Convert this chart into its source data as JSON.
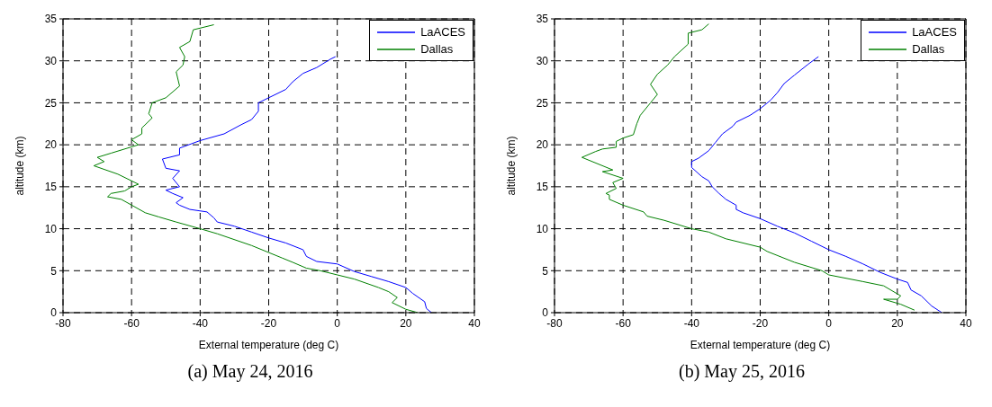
{
  "chart_data": [
    {
      "type": "line",
      "title": "(a) May 24, 2016",
      "xlabel": "External temperature (deg C)",
      "ylabel": "altitude (km)",
      "xlim": [
        -80,
        40
      ],
      "xticks": [
        -80,
        -60,
        -40,
        -20,
        0,
        20,
        40
      ],
      "ylim": [
        0,
        35
      ],
      "yticks": [
        0,
        5,
        10,
        15,
        20,
        25,
        30,
        35
      ],
      "grid": true,
      "legend": "top right",
      "series": [
        {
          "name": "LaACES",
          "color": "#0000ff",
          "x": [
            27.5,
            26,
            25.5,
            22,
            20,
            15,
            10,
            5,
            0,
            -6,
            -9,
            -10,
            -15,
            -20,
            -25,
            -30,
            -35,
            -36,
            -38,
            -43,
            -46,
            -47,
            -45,
            -48,
            -50,
            -46,
            -48,
            -46,
            -50,
            -51,
            -46,
            -46,
            -40,
            -33,
            -28,
            -25,
            -23,
            -23,
            -20,
            -15,
            -13,
            -10,
            -6,
            -2,
            -0.5
          ],
          "values": [
            0,
            0.5,
            1.3,
            2.3,
            3,
            3.7,
            4.3,
            4.9,
            5.8,
            6.1,
            6.7,
            7.5,
            8.3,
            8.9,
            9.6,
            10.3,
            10.8,
            11.3,
            12,
            12.3,
            12.8,
            13.1,
            13.7,
            14.2,
            14.6,
            15,
            16,
            16.9,
            17.2,
            18.3,
            18.8,
            19.6,
            20.5,
            21.3,
            22.4,
            23,
            24,
            25,
            25.6,
            26.6,
            27.5,
            28.5,
            29.2,
            30.2,
            30.5
          ]
        },
        {
          "name": "Dallas",
          "color": "#008000",
          "x": [
            23.5,
            20,
            16,
            17.5,
            15,
            12,
            5,
            0,
            -5,
            -9,
            -13,
            -16,
            -25,
            -35,
            -40,
            -47,
            -52,
            -56,
            -63,
            -67,
            -66,
            -62,
            -60,
            -58,
            -64,
            -71,
            -68,
            -70,
            -66,
            -58,
            -60,
            -57,
            -57,
            -54,
            -55,
            -54,
            -50,
            -46,
            -47,
            -45,
            -44.5,
            -46,
            -43,
            -42,
            -36
          ],
          "values": [
            0,
            0.4,
            1.2,
            1.8,
            2.5,
            3,
            4,
            4.5,
            5,
            5.3,
            6,
            6.5,
            8,
            9.4,
            10,
            10.8,
            11.4,
            11.9,
            13.5,
            13.8,
            14.2,
            14.5,
            15,
            15.3,
            16.5,
            17.5,
            18,
            18.5,
            19,
            20,
            20.6,
            21.3,
            22,
            23.2,
            23.7,
            25,
            25.6,
            27,
            28.7,
            29.5,
            30.5,
            31.6,
            32.3,
            33.7,
            34.3
          ]
        }
      ]
    },
    {
      "type": "line",
      "title": "(b) May 25, 2016",
      "xlabel": "External temperature (deg C)",
      "ylabel": "altitude (km)",
      "xlim": [
        -80,
        40
      ],
      "xticks": [
        -80,
        -60,
        -40,
        -20,
        0,
        20,
        40
      ],
      "ylim": [
        0,
        35
      ],
      "yticks": [
        0,
        5,
        10,
        15,
        20,
        25,
        30,
        35
      ],
      "grid": true,
      "legend": "top right",
      "series": [
        {
          "name": "LaACES",
          "color": "#0000ff",
          "x": [
            33,
            30,
            27,
            24,
            23,
            20,
            15,
            10,
            5,
            0,
            -5,
            -10,
            -15,
            -20,
            -25,
            -27,
            -27,
            -30,
            -32,
            -34,
            -35,
            -37,
            -40,
            -40,
            -38,
            -35,
            -33,
            -31,
            -28,
            -27,
            -23,
            -20,
            -17,
            -15,
            -13,
            -10,
            -6,
            -3
          ],
          "values": [
            0,
            0.8,
            2,
            2.7,
            3.6,
            4,
            4.8,
            5.8,
            6.7,
            7.5,
            8.5,
            9.5,
            10.3,
            11.2,
            11.9,
            12.3,
            12.8,
            13.5,
            14.2,
            15,
            15.7,
            16.2,
            17.3,
            18,
            18.4,
            19.3,
            20.3,
            21.3,
            22.2,
            22.7,
            23.5,
            24.3,
            25.3,
            26.2,
            27.3,
            28.3,
            29.6,
            30.5
          ]
        },
        {
          "name": "Dallas",
          "color": "#008000",
          "x": [
            25,
            21,
            16,
            20,
            21,
            16,
            10,
            0,
            -2,
            -10,
            -18,
            -20,
            -30,
            -35,
            -40,
            -48,
            -53,
            -54,
            -60,
            -64,
            -64,
            -65,
            -62,
            -63,
            -60,
            -66,
            -63,
            -72,
            -68,
            -66,
            -62,
            -62,
            -60,
            -57,
            -56,
            -55,
            -52,
            -50,
            -52,
            -50,
            -47,
            -45,
            -41,
            -41,
            -37,
            -35
          ],
          "values": [
            0.3,
            1,
            1.6,
            1.6,
            2,
            3.2,
            3.7,
            4.5,
            5,
            6,
            7.3,
            7.8,
            8.8,
            9.6,
            10,
            11,
            11.5,
            12,
            12.8,
            13.5,
            14,
            14.2,
            14.8,
            15.5,
            16,
            16.8,
            17,
            18.5,
            19.2,
            19.5,
            19.7,
            20.4,
            20.8,
            21.2,
            22.5,
            23.5,
            25,
            26,
            27.2,
            28.4,
            29.5,
            30.5,
            32,
            33.3,
            33.7,
            34.4
          ]
        }
      ]
    }
  ]
}
